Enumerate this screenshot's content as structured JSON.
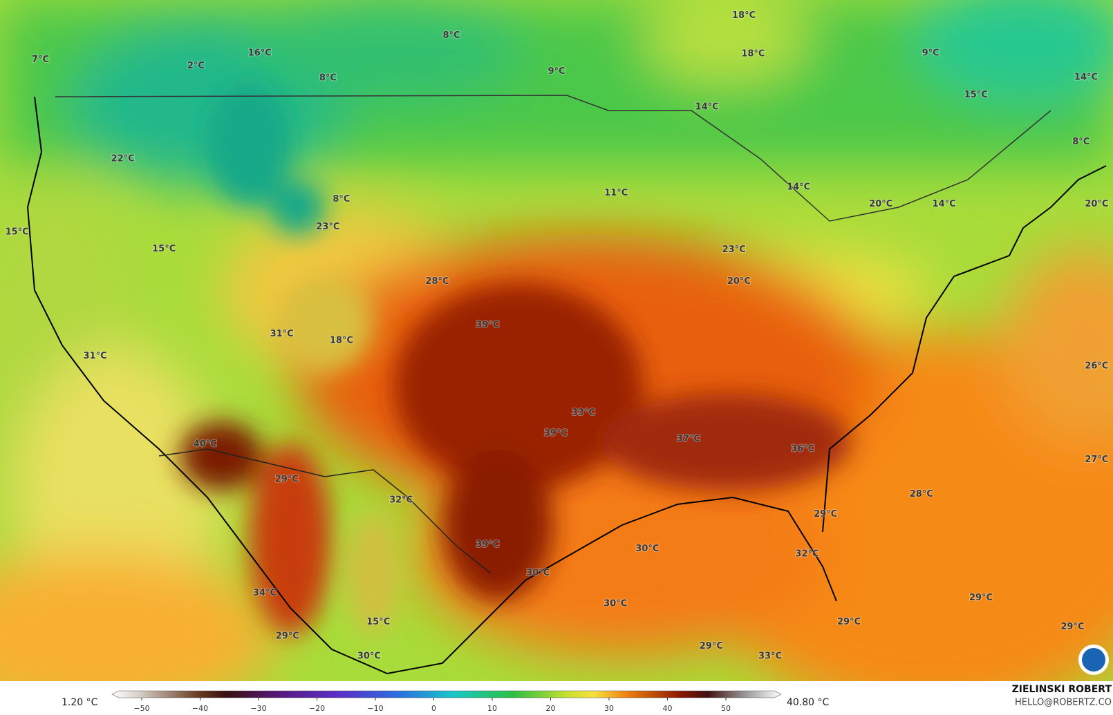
{
  "map": {
    "labels": [
      "18°C",
      "8°C",
      "16°C",
      "18°C",
      "9°C",
      "7°C",
      "2°C",
      "8°C",
      "9°C",
      "14°C",
      "15°C",
      "14°C",
      "8°C",
      "22°C",
      "11°C",
      "14°C",
      "8°C",
      "20°C",
      "14°C",
      "20°C",
      "15°C",
      "23°C",
      "15°C",
      "23°C",
      "28°C",
      "20°C",
      "39°C",
      "31°C",
      "18°C",
      "31°C",
      "26°C",
      "33°C",
      "39°C",
      "37°C",
      "36°C",
      "40°C",
      "27°C",
      "29°C",
      "28°C",
      "32°C",
      "29°C",
      "39°C",
      "30°C",
      "32°C",
      "30°C",
      "34°C",
      "30°C",
      "29°C",
      "15°C",
      "29°C",
      "29°C",
      "29°C",
      "29°C",
      "30°C",
      "33°C"
    ],
    "colorbar": {
      "min_label": "1.20 °C",
      "max_label": "40.80 °C",
      "ticks": [
        {
          "value": -50,
          "label": "−50"
        },
        {
          "value": -40,
          "label": "−40"
        },
        {
          "value": -30,
          "label": "−30"
        },
        {
          "value": -20,
          "label": "−20"
        },
        {
          "value": -10,
          "label": "−10"
        },
        0,
        10,
        20,
        30,
        40,
        50
      ]
    },
    "credit": {
      "name": "ZIELINSKI ROBERT",
      "email": "HELLO@ROBERTZ.CO"
    }
  }
}
